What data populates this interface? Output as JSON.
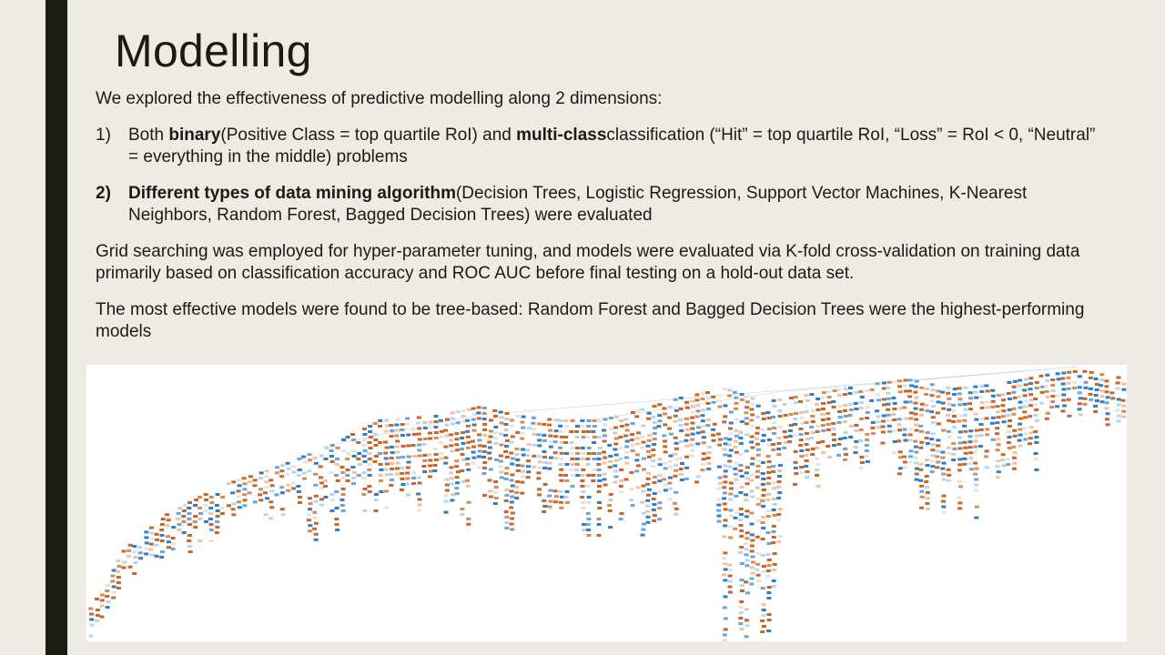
{
  "slide": {
    "title": "Modelling",
    "intro": "We explored the effectiveness of predictive modelling along 2 dimensions:",
    "list": [
      {
        "number": "1)",
        "bold": "binary",
        "pre": "Both ",
        "mid": "(Positive Class = top quartile RoI) and ",
        "bold2": "multi-class",
        "post": "classification (“Hit” = top quartile RoI, “Loss” = RoI < 0, “Neutral” = everything in the middle) problems"
      },
      {
        "number": "2)",
        "bold": "Different types of data mining algorithm",
        "post": "(Decision Trees, Logistic Regression, Support Vector Machines, K-Nearest Neighbors, Random Forest, Bagged Decision Trees) were evaluated"
      }
    ],
    "para_grid": "Grid searching was employed for hyper-parameter tuning, and models were evaluated via K-fold cross-validation on training data primarily based on classification accuracy and ROC AUC before final testing on a hold-out data set.",
    "para_result": "The most effective models were found to be tree-based: Random Forest and Bagged Decision Trees were the highest-performing models"
  },
  "tree_figure": {
    "description_icon": "decision-tree-visualization",
    "colors": {
      "orange_dark": "#c8662a",
      "orange_mid": "#d98a55",
      "orange_light": "#eec2a2",
      "blue_dark": "#2f7fc6",
      "blue_mid": "#6aa6da",
      "blue_light": "#b9d5ee",
      "neutral": "#e6e2de",
      "edge": "#cfcfcf"
    }
  }
}
